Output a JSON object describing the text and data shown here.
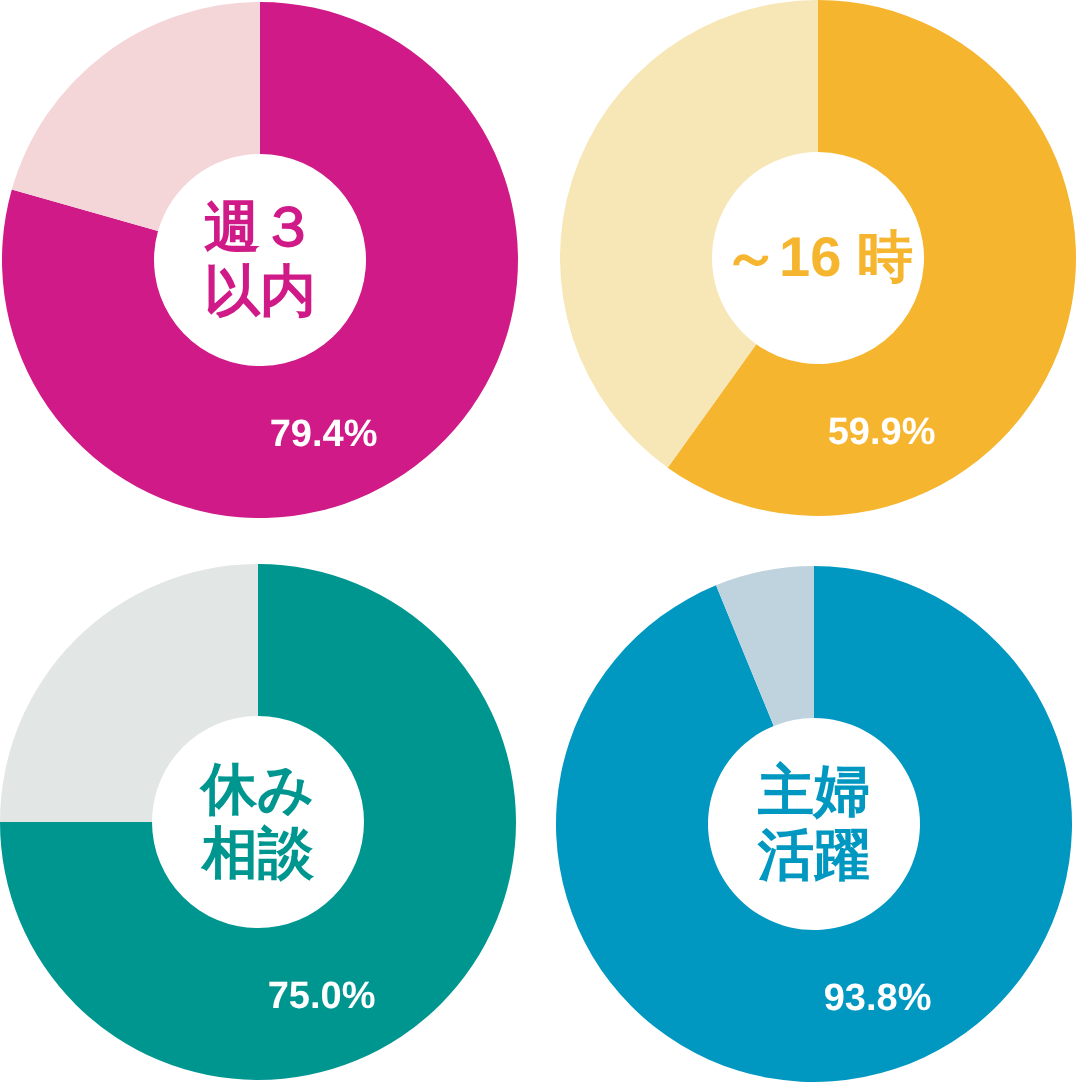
{
  "chart_data": [
    {
      "type": "donut",
      "title": "週３以内",
      "categories": [
        null,
        null
      ],
      "values": [
        79.4,
        20.6
      ],
      "colors": [
        "#cf1a87",
        "#f5d6d8"
      ],
      "value_labels": [
        "79.4%",
        null
      ]
    },
    {
      "type": "donut",
      "title": "～16 時",
      "categories": [
        null,
        null
      ],
      "values": [
        59.9,
        40.1
      ],
      "colors": [
        "#f6b52e",
        "#f7e6b6"
      ],
      "value_labels": [
        "59.9%",
        null
      ]
    },
    {
      "type": "donut",
      "title": "休み相談",
      "categories": [
        null,
        null
      ],
      "values": [
        75.0,
        25.0
      ],
      "colors": [
        "#009690",
        "#e2e6e5"
      ],
      "value_labels": [
        "75.0%",
        null
      ]
    },
    {
      "type": "donut",
      "title": "主婦活躍",
      "categories": [
        null,
        null
      ],
      "values": [
        93.8,
        6.2
      ],
      "colors": [
        "#0097c1",
        "#bfd3df"
      ],
      "value_labels": [
        "93.8%",
        null
      ]
    }
  ]
}
